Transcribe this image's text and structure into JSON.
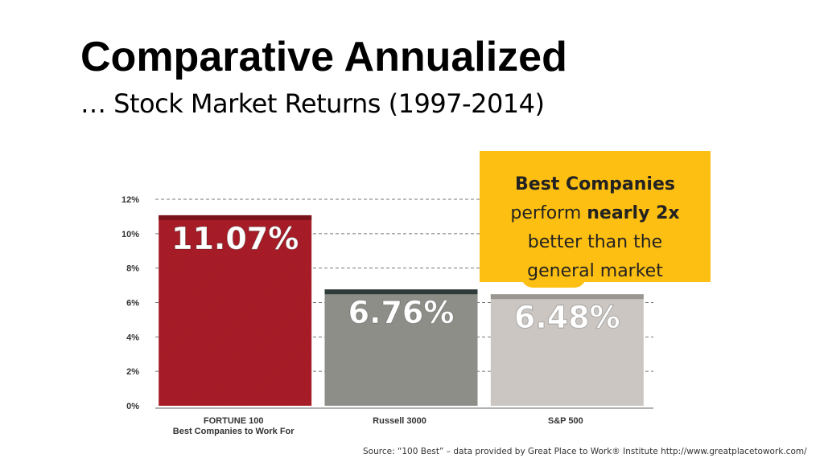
{
  "slide": {
    "title": "Comparative Annualized",
    "subtitle": "… Stock Market Returns (1997-2014)",
    "source": "Source: “100 Best” – data provided by Great Place to Work® Institute http://www.greatplacetowork.com/"
  },
  "callout": {
    "line1": "Best Companies",
    "line2_prefix": "perform ",
    "line2_bold": "nearly 2x",
    "line3": "better than the",
    "line4": "general market",
    "color": "#fdbf11"
  },
  "chart_data": {
    "type": "bar",
    "categories": [
      [
        "FORTUNE 100",
        "Best Companies to Work For"
      ],
      [
        "Russell 3000"
      ],
      [
        "S&P 500"
      ]
    ],
    "values": [
      11.07,
      6.76,
      6.48
    ],
    "value_labels": [
      "11.07%",
      "6.76%",
      "6.48%"
    ],
    "bar_colors": [
      "#a81c27",
      "#8e8e88",
      "#cbc6c2"
    ],
    "bar_cap_colors": [
      "#7a121b",
      "#2f3a3a",
      "#9a9690"
    ],
    "ylim": [
      0,
      12
    ],
    "yticks": [
      0,
      2,
      4,
      6,
      8,
      10,
      12
    ],
    "ytick_labels": [
      "0%",
      "2%",
      "4%",
      "6%",
      "8%",
      "10%",
      "12%"
    ],
    "grid": true,
    "title": "",
    "xlabel": "",
    "ylabel": ""
  }
}
